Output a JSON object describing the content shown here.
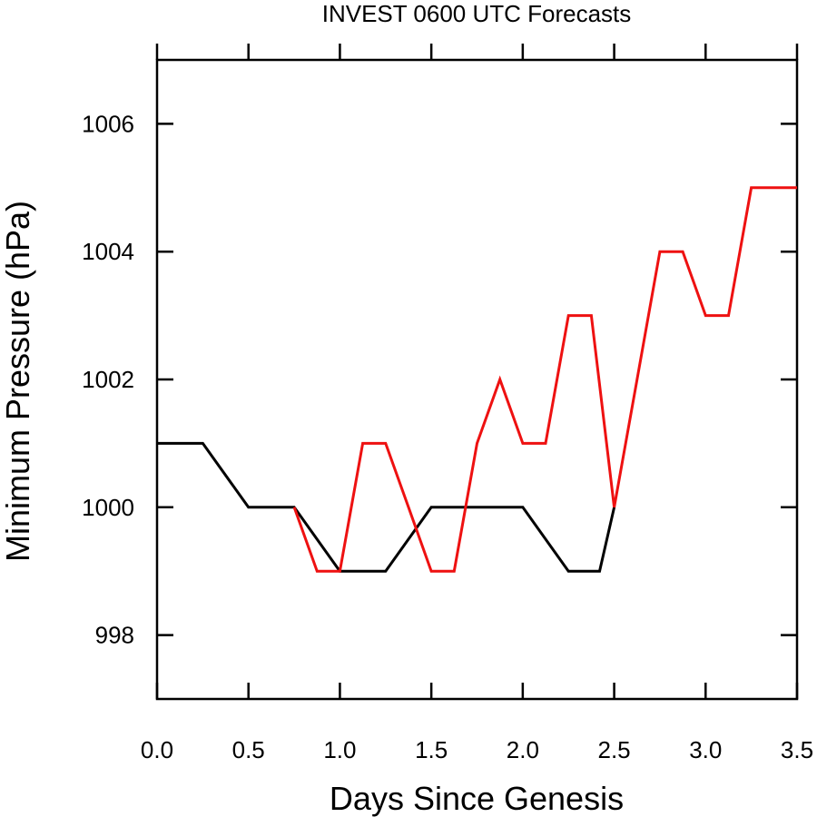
{
  "chart_data": {
    "type": "line",
    "title": "INVEST 0600 UTC Forecasts",
    "xlabel": "Days Since Genesis",
    "ylabel": "Minimum Pressure (hPa)",
    "xlim": [
      0,
      3.5
    ],
    "ylim": [
      997,
      1007
    ],
    "x_ticks": [
      0.0,
      0.5,
      1.0,
      1.5,
      2.0,
      2.5,
      3.0,
      3.5
    ],
    "x_tick_labels": [
      "0.0",
      "0.5",
      "1.0",
      "1.5",
      "2.0",
      "2.5",
      "3.0",
      "3.5"
    ],
    "y_ticks": [
      998,
      1000,
      1002,
      1004,
      1006
    ],
    "y_tick_labels": [
      "998",
      "1000",
      "1002",
      "1004",
      "1006"
    ],
    "grid": false,
    "series": [
      {
        "color": "#000000",
        "x": [
          0,
          0.25,
          0.5,
          0.75,
          1.0,
          1.25,
          1.5,
          1.75,
          2.0,
          2.25,
          2.42,
          2.5
        ],
        "y": [
          1001,
          1001,
          1000,
          1000,
          999,
          999,
          1000,
          1000,
          1000,
          999,
          999,
          1000
        ]
      },
      {
        "color": "#ee1111",
        "x": [
          0.75,
          0.875,
          1.0,
          1.125,
          1.25,
          1.375,
          1.5,
          1.625,
          1.75,
          1.875,
          2.0,
          2.125,
          2.25,
          2.375,
          2.5,
          2.625,
          2.75,
          2.875,
          3.0,
          3.125,
          3.25,
          3.375,
          3.5
        ],
        "y": [
          1000,
          999,
          999,
          1001,
          1001,
          1000,
          999,
          999,
          1001,
          1002,
          1001,
          1001,
          1003,
          1003,
          1000,
          1002,
          1004,
          1004,
          1003,
          1003,
          1005,
          1005,
          1005
        ]
      }
    ]
  }
}
